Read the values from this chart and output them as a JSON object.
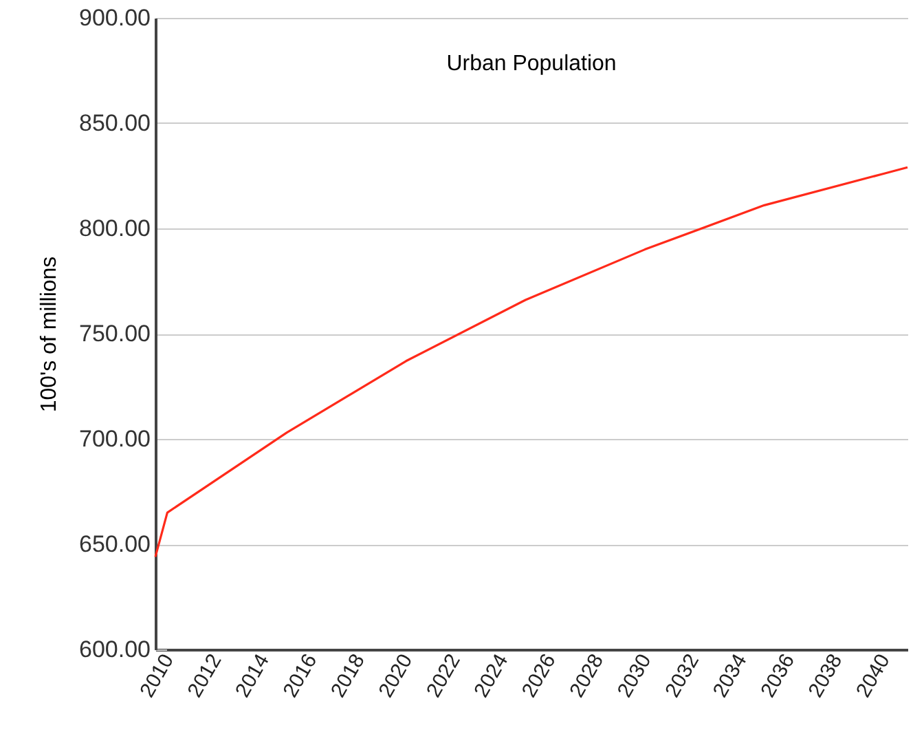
{
  "chart_data": {
    "type": "line",
    "title": "Urban Population",
    "ylabel": "100's of millions",
    "x": [
      2009.5,
      2010,
      2015,
      2020,
      2025,
      2030,
      2035,
      2040,
      2041
    ],
    "series": [
      {
        "color": "#ff2a1a",
        "values": [
          644,
          665,
          703,
          737,
          766,
          790,
          811,
          826,
          829
        ]
      }
    ],
    "xlim": [
      2009.5,
      2041
    ],
    "xticks": [
      2010,
      2012,
      2014,
      2016,
      2018,
      2020,
      2022,
      2024,
      2026,
      2028,
      2030,
      2032,
      2034,
      2036,
      2038,
      2040
    ],
    "ylim": [
      600,
      900
    ],
    "yticks": [
      {
        "value": 600,
        "label": "600.00"
      },
      {
        "value": 650,
        "label": "650.00"
      },
      {
        "value": 700,
        "label": "700.00"
      },
      {
        "value": 750,
        "label": "750.00"
      },
      {
        "value": 800,
        "label": "800.00"
      },
      {
        "value": 850,
        "label": "850.00"
      },
      {
        "value": 900,
        "label": "900.00"
      }
    ],
    "grid": "y",
    "marker": "none",
    "line_style": "solid"
  }
}
